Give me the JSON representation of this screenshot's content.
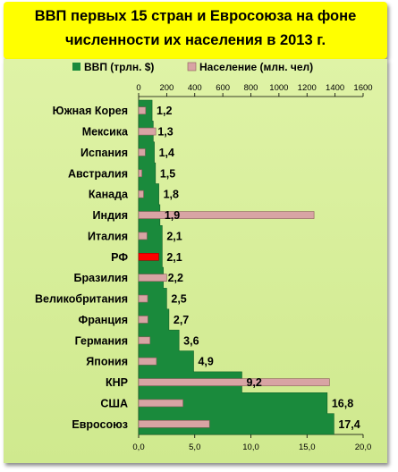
{
  "title_line1": "ВВП первых 15 стран и Евросоюза на фоне",
  "title_line2": "численности их населения в 2013 г.",
  "colors": {
    "gdp": "#1a8a3c",
    "pop": "#d8a4a4",
    "highlight": "#ff0000",
    "title_bg": "#ffff00"
  },
  "chart_data": {
    "type": "bar",
    "orientation": "horizontal",
    "categories": [
      "Южная Корея",
      "Мексика",
      "Испания",
      "Австралия",
      "Канада",
      "Индия",
      "Италия",
      "РФ",
      "Бразилия",
      "Великобритания",
      "Франция",
      "Германия",
      "Япония",
      "КНР",
      "США",
      "Евросоюз"
    ],
    "series": [
      {
        "name": "ВВП (трлн. $)",
        "axis": "bottom",
        "values": [
          1.2,
          1.3,
          1.4,
          1.5,
          1.8,
          1.9,
          2.1,
          2.1,
          2.2,
          2.5,
          2.7,
          3.6,
          4.9,
          9.2,
          16.8,
          17.4
        ],
        "labels": [
          "1,2",
          "1,3",
          "1,4",
          "1,5",
          "1,8",
          "1,9",
          "2,1",
          "2,1",
          "2,2",
          "2,5",
          "2,7",
          "3,6",
          "4,9",
          "9,2",
          "16,8",
          "17,4"
        ]
      },
      {
        "name": "Население (млн. чел)",
        "axis": "top",
        "values": [
          50,
          122,
          47,
          23,
          35,
          1250,
          60,
          143,
          200,
          64,
          66,
          81,
          127,
          1360,
          316,
          505
        ]
      }
    ],
    "highlight_category": "РФ",
    "top_axis": {
      "ticks": [
        "0",
        "200",
        "400",
        "600",
        "800",
        "1000",
        "1200",
        "1400",
        "1600"
      ],
      "range": [
        0,
        1600
      ]
    },
    "bottom_axis": {
      "ticks": [
        "0,0",
        "5,0",
        "10,0",
        "15,0",
        "20,0"
      ],
      "range": [
        0,
        20
      ]
    },
    "legend_position": "top"
  }
}
